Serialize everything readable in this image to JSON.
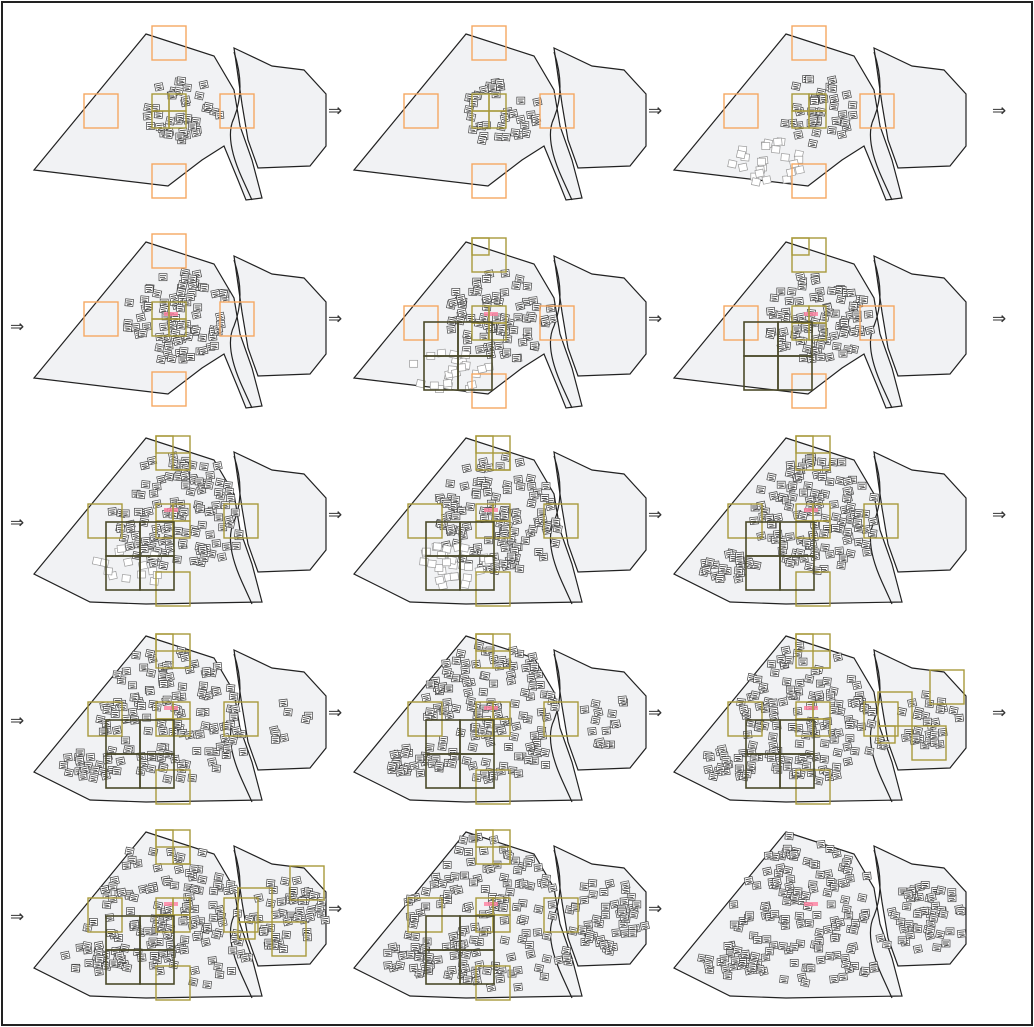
{
  "figure": {
    "arrow_glyph": "⇒",
    "rows": 5,
    "columns": 3
  },
  "colors": {
    "region_fill": "#f1f2f4",
    "region_stroke": "#222222",
    "candidate_box": "#f5a862",
    "accepted_box": "#a89a3c",
    "large_box": "#4b4a2a",
    "tile_dark": "#444444",
    "tile_light": "#9a9a9a",
    "highlight": "#ff7fa0",
    "frame": "#222222"
  },
  "icons": {
    "arrow": "double-right-arrow-icon",
    "tile": "sample-tile-icon",
    "box": "square-window-icon"
  },
  "panels": [
    {
      "row": 1,
      "col": 1,
      "stage": 1,
      "main_tiles": 40,
      "side_tiles": 0,
      "ghost_tiles": 0,
      "extra_tiles": 0,
      "boxes": "orange4"
    },
    {
      "row": 1,
      "col": 2,
      "stage": 1,
      "main_tiles": 38,
      "side_tiles": 0,
      "ghost_tiles": 0,
      "extra_tiles": 0,
      "boxes": "orange4"
    },
    {
      "row": 1,
      "col": 3,
      "stage": 1,
      "main_tiles": 40,
      "side_tiles": 0,
      "ghost_tiles": 26,
      "extra_tiles": 0,
      "boxes": "orange4"
    },
    {
      "row": 2,
      "col": 1,
      "stage": 2,
      "main_tiles": 85,
      "side_tiles": 0,
      "ghost_tiles": 0,
      "extra_tiles": 0,
      "boxes": "orange4"
    },
    {
      "row": 2,
      "col": 2,
      "stage": 2,
      "main_tiles": 80,
      "side_tiles": 0,
      "ghost_tiles": 24,
      "extra_tiles": 0,
      "boxes": "mixed"
    },
    {
      "row": 2,
      "col": 3,
      "stage": 2,
      "main_tiles": 90,
      "side_tiles": 0,
      "ghost_tiles": 0,
      "extra_tiles": 0,
      "boxes": "mixed"
    },
    {
      "row": 3,
      "col": 1,
      "stage": 3,
      "main_tiles": 120,
      "side_tiles": 0,
      "ghost_tiles": 14,
      "extra_tiles": 0,
      "boxes": "olive"
    },
    {
      "row": 3,
      "col": 2,
      "stage": 3,
      "main_tiles": 120,
      "side_tiles": 0,
      "ghost_tiles": 30,
      "extra_tiles": 0,
      "boxes": "olive"
    },
    {
      "row": 3,
      "col": 3,
      "stage": 3,
      "main_tiles": 125,
      "side_tiles": 0,
      "ghost_tiles": 0,
      "extra_tiles": 24,
      "boxes": "olive"
    },
    {
      "row": 4,
      "col": 1,
      "stage": 4,
      "main_tiles": 130,
      "side_tiles": 8,
      "ghost_tiles": 0,
      "extra_tiles": 24,
      "boxes": "olive"
    },
    {
      "row": 4,
      "col": 2,
      "stage": 4,
      "main_tiles": 130,
      "side_tiles": 16,
      "ghost_tiles": 0,
      "extra_tiles": 24,
      "boxes": "olive"
    },
    {
      "row": 4,
      "col": 3,
      "stage": 4,
      "main_tiles": 130,
      "side_tiles": 28,
      "ghost_tiles": 0,
      "extra_tiles": 24,
      "boxes": "olive_side"
    },
    {
      "row": 5,
      "col": 1,
      "stage": 5,
      "main_tiles": 135,
      "side_tiles": 50,
      "ghost_tiles": 0,
      "extra_tiles": 24,
      "boxes": "olive_side"
    },
    {
      "row": 5,
      "col": 2,
      "stage": 5,
      "main_tiles": 135,
      "side_tiles": 50,
      "ghost_tiles": 0,
      "extra_tiles": 24,
      "boxes": "olive"
    },
    {
      "row": 5,
      "col": 3,
      "stage": 5,
      "main_tiles": 135,
      "side_tiles": 50,
      "ghost_tiles": 0,
      "extra_tiles": 24,
      "boxes": "none"
    }
  ]
}
